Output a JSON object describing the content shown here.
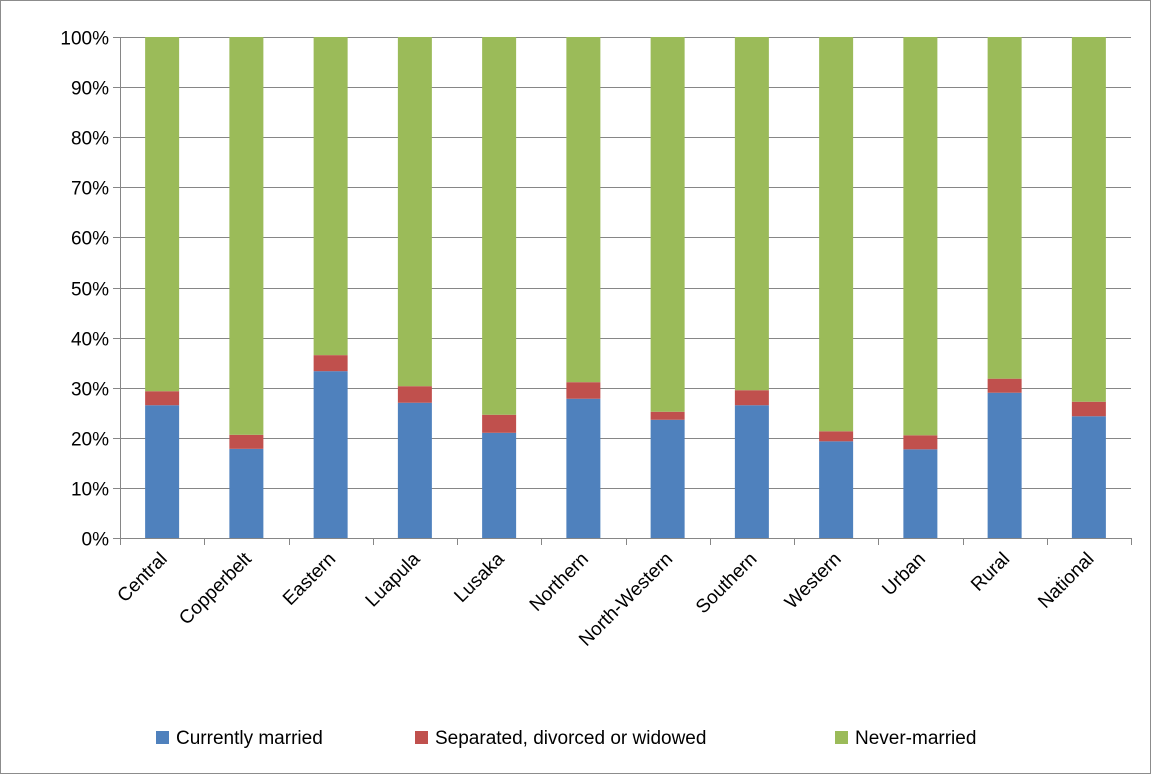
{
  "chart_data": {
    "type": "bar",
    "stacked": true,
    "percent": true,
    "categories": [
      "Central",
      "Copperbelt",
      "Eastern",
      "Luapula",
      "Lusaka",
      "Northern",
      "North-Western",
      "Southern",
      "Western",
      "Urban",
      "Rural",
      "National"
    ],
    "series": [
      {
        "name": "Currently married",
        "color": "#4f81bd",
        "values": [
          26.5,
          17.8,
          33.3,
          27.0,
          21.0,
          27.8,
          23.6,
          26.5,
          19.3,
          17.7,
          29.0,
          24.3
        ]
      },
      {
        "name": "Separated, divorced or widowed",
        "color": "#c0504d",
        "values": [
          2.8,
          2.8,
          3.2,
          3.3,
          3.6,
          3.3,
          1.6,
          3.0,
          2.0,
          2.8,
          2.8,
          2.9
        ]
      },
      {
        "name": "Never-married",
        "color": "#9bbb59",
        "values": [
          70.7,
          79.4,
          63.5,
          69.7,
          75.4,
          68.9,
          74.8,
          70.5,
          78.7,
          79.5,
          68.2,
          72.8
        ]
      }
    ],
    "yticks": [
      "0%",
      "10%",
      "20%",
      "30%",
      "40%",
      "50%",
      "60%",
      "70%",
      "80%",
      "90%",
      "100%"
    ],
    "ylim": [
      0,
      100
    ],
    "grid": true,
    "legend_position": "bottom",
    "title": "",
    "xlabel": "",
    "ylabel": ""
  }
}
